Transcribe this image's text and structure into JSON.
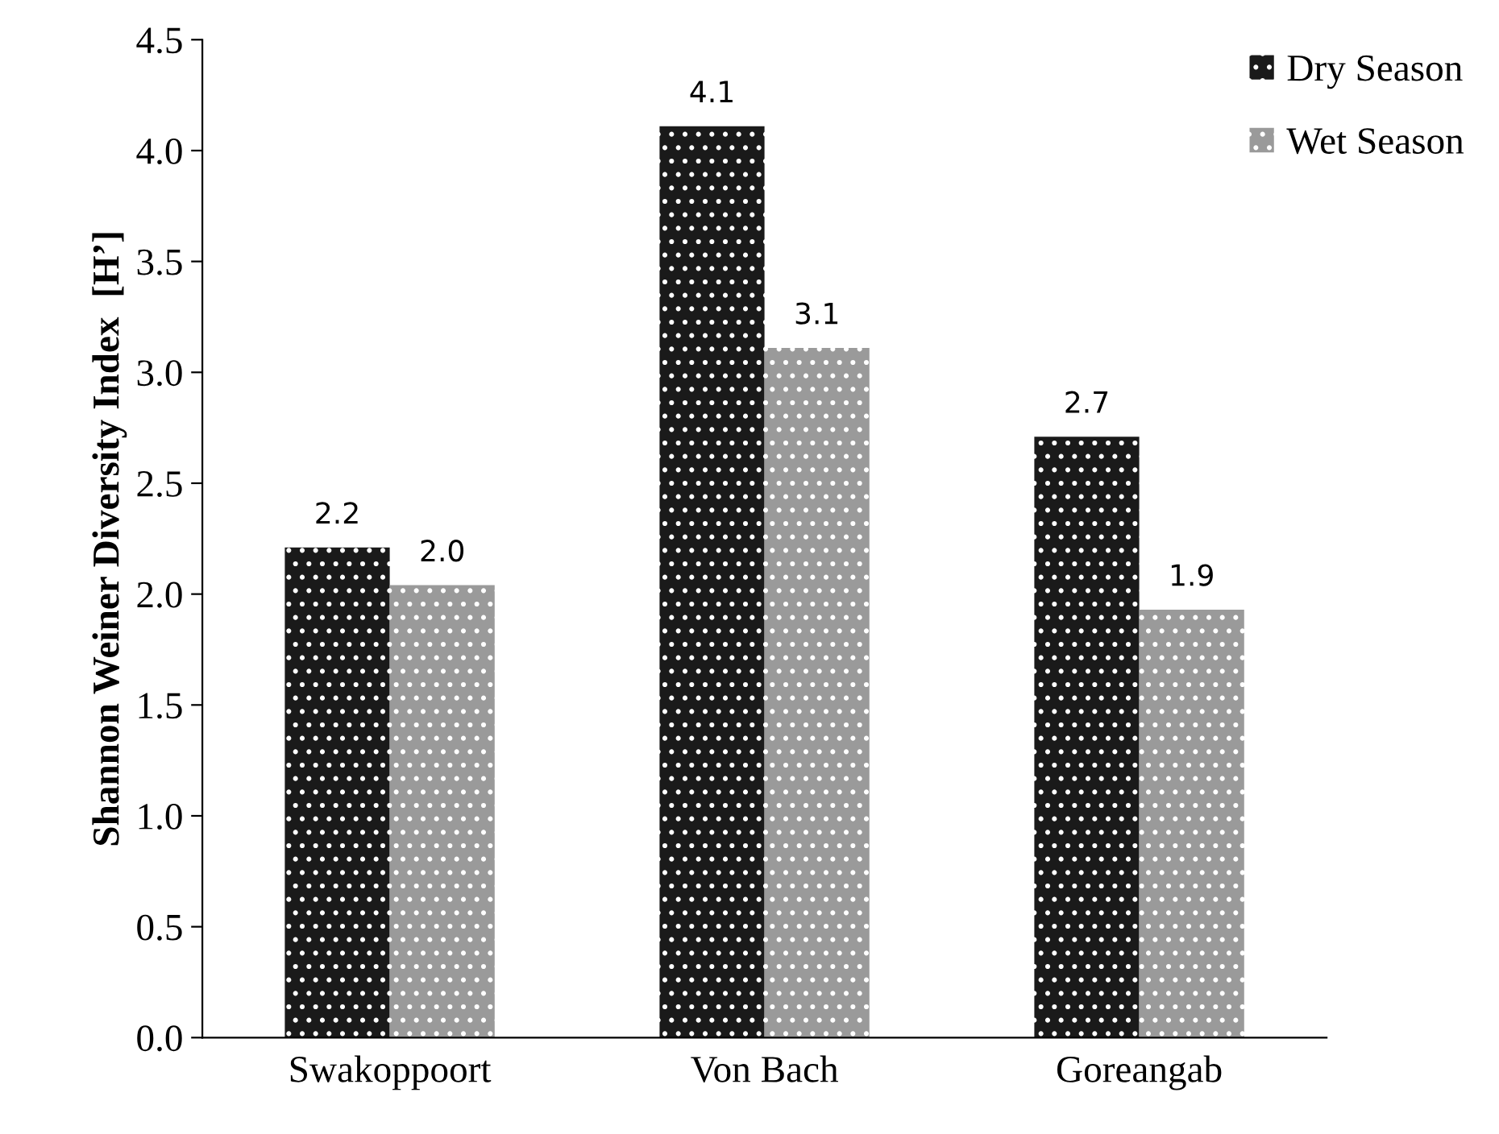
{
  "chart_data": {
    "type": "bar",
    "ylabel": "Shannon Weiner Diversity Index  [H’]",
    "categories": [
      "Swakoppoort",
      "Von Bach",
      "Goreangab"
    ],
    "series": [
      {
        "name": "Dry Season",
        "color": "#1a1a1a",
        "values": [
          2.21,
          4.11,
          2.71
        ],
        "value_labels": [
          "2.2",
          "4.1",
          "2.7"
        ]
      },
      {
        "name": "Wet Season",
        "color": "#9a9a9a",
        "values": [
          2.04,
          3.11,
          1.93
        ],
        "value_labels": [
          "2.0",
          "3.1",
          "1.9"
        ]
      }
    ],
    "ylim": [
      0,
      4.5
    ],
    "yticks": [
      {
        "value": 0,
        "label": "0.0"
      },
      {
        "value": 0.5,
        "label": "0.5"
      },
      {
        "value": 1,
        "label": "1.0"
      },
      {
        "value": 1.5,
        "label": "1.5"
      },
      {
        "value": 2,
        "label": "2.0"
      },
      {
        "value": 2.5,
        "label": "2.5"
      },
      {
        "value": 3,
        "label": "3.0"
      },
      {
        "value": 3.5,
        "label": "3.5"
      },
      {
        "value": 4,
        "label": "4.0"
      },
      {
        "value": 4.5,
        "label": "4.5"
      }
    ],
    "grid": false,
    "legend": "top right"
  }
}
